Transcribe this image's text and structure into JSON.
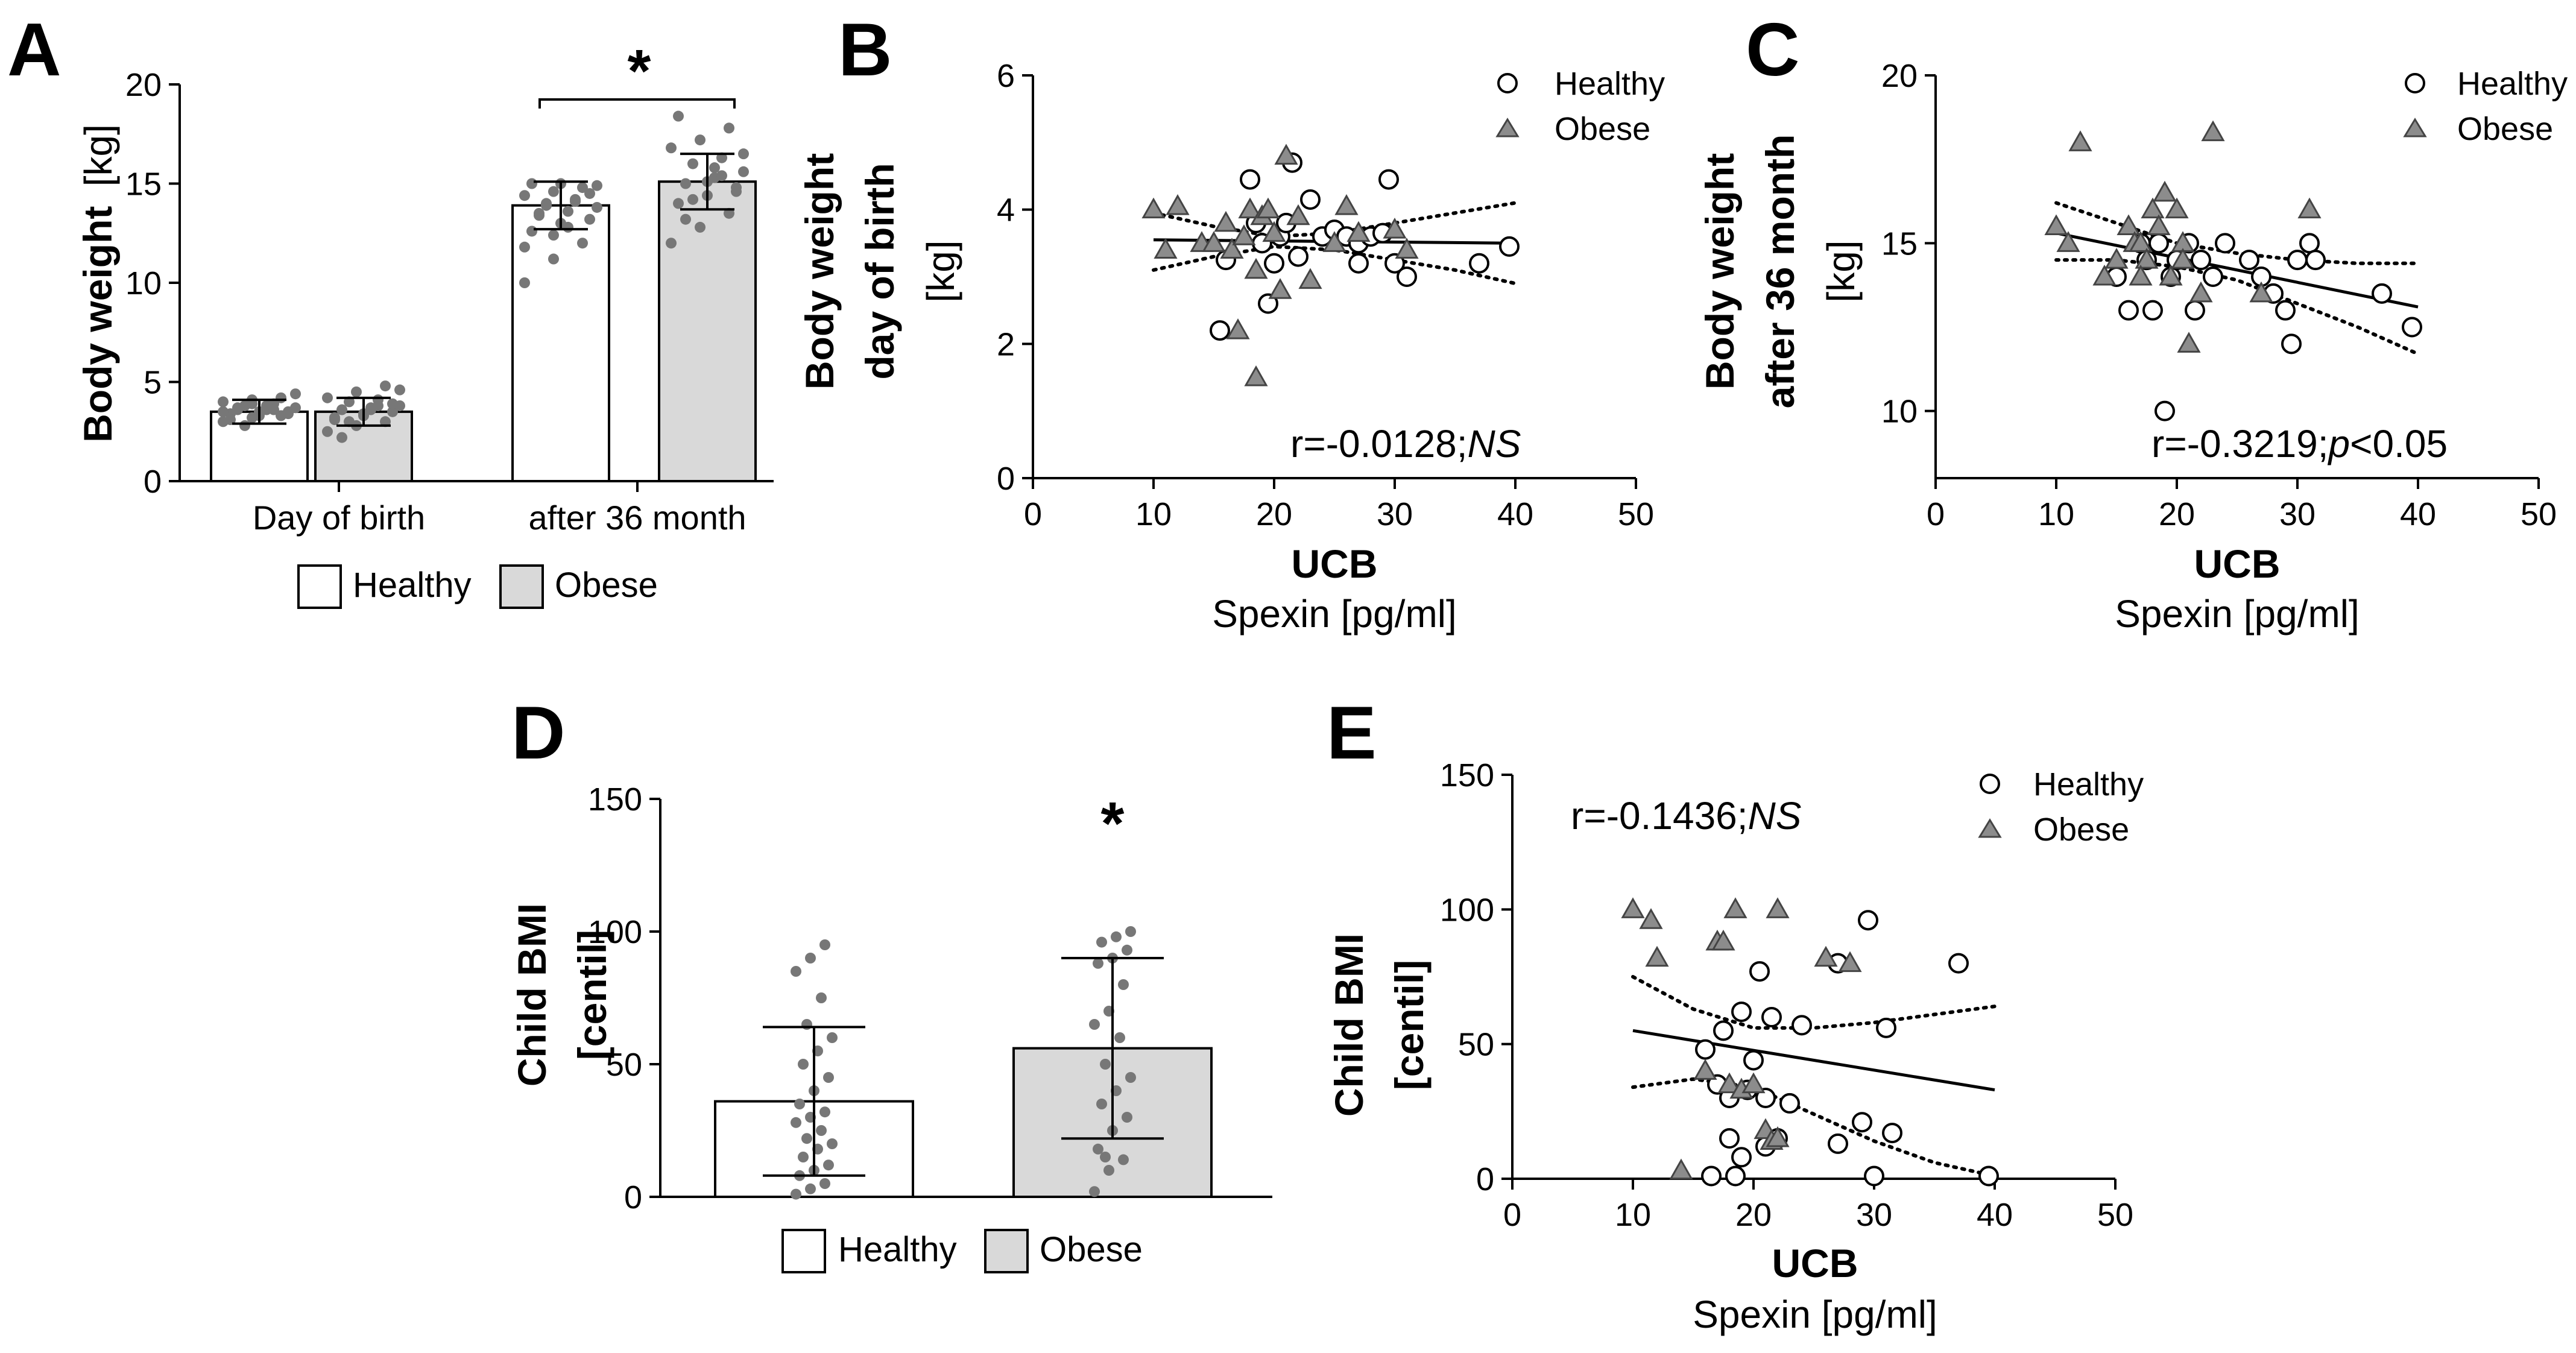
{
  "chart_data": [
    {
      "panel": "A",
      "type": "bar",
      "ylabel": "Body weight",
      "yunit": "[kg]",
      "ylim": [
        0,
        20
      ],
      "yticks": [
        "0",
        "5",
        "10",
        "15",
        "20"
      ],
      "categories": [
        "Day of birth",
        "after 36 month"
      ],
      "legend": [
        "Healthy",
        "Obese"
      ],
      "series": [
        {
          "name": "Healthy",
          "color": "#ffffff",
          "means": [
            3.5,
            13.9
          ],
          "sd": [
            0.6,
            1.2
          ],
          "points": [
            [
              3.0,
              3.2,
              3.3,
              3.4,
              3.5,
              3.5,
              3.6,
              3.6,
              3.7,
              3.8,
              3.9,
              4.0,
              4.1,
              4.2,
              3.1,
              3.3,
              3.4,
              3.7,
              3.8,
              4.4,
              2.8,
              3.6,
              3.5,
              3.9
            ],
            [
              10.0,
              11.2,
              12.0,
              12.6,
              13.0,
              13.2,
              13.4,
              13.6,
              13.8,
              14.0,
              14.2,
              14.4,
              14.6,
              14.8,
              15.0,
              15.0,
              14.5,
              13.5,
              12.8,
              14.9,
              13.9,
              14.1,
              11.8,
              12.4
            ]
          ]
        },
        {
          "name": "Obese",
          "color": "#d9d9d9",
          "means": [
            3.5,
            15.1
          ],
          "sd": [
            0.7,
            1.4
          ],
          "points": [
            [
              2.5,
              2.8,
              3.0,
              3.2,
              3.3,
              3.5,
              3.6,
              3.7,
              3.8,
              4.0,
              4.1,
              4.2,
              4.5,
              4.8,
              3.1,
              3.4,
              3.9,
              2.2,
              3.6,
              4.6,
              3.0,
              3.8
            ],
            [
              12.0,
              12.8,
              13.5,
              14.0,
              14.4,
              14.8,
              15.0,
              15.3,
              15.6,
              16.0,
              16.3,
              16.8,
              17.2,
              17.8,
              18.4,
              15.1,
              14.6,
              13.2,
              15.8,
              16.5,
              14.2,
              15.4
            ]
          ]
        }
      ],
      "annotations": [
        "*"
      ]
    },
    {
      "panel": "B",
      "type": "scatter",
      "ylabel": [
        "Body weight",
        "day of birth"
      ],
      "yunit": "[kg]",
      "xlabel": "UCB",
      "xsublabel": "Spexin [pg/ml]",
      "xlim": [
        0,
        50
      ],
      "ylim": [
        0,
        6
      ],
      "xticks": [
        "0",
        "10",
        "20",
        "30",
        "40",
        "50"
      ],
      "yticks": [
        "0",
        "2",
        "4",
        "6"
      ],
      "series": [
        {
          "name": "Healthy",
          "marker": "circle",
          "points": [
            [
              15.5,
              2.2
            ],
            [
              16,
              3.25
            ],
            [
              18,
              4.45
            ],
            [
              18.5,
              3.8
            ],
            [
              19,
              3.5
            ],
            [
              19.5,
              2.6
            ],
            [
              20.5,
              3.6
            ],
            [
              21,
              3.8
            ],
            [
              21.5,
              4.7
            ],
            [
              22,
              3.3
            ],
            [
              23,
              4.15
            ],
            [
              24,
              3.6
            ],
            [
              25,
              3.7
            ],
            [
              26,
              3.6
            ],
            [
              27,
              3.5
            ],
            [
              27,
              3.2
            ],
            [
              28,
              3.6
            ],
            [
              29,
              3.65
            ],
            [
              29.5,
              4.45
            ],
            [
              30,
              3.2
            ],
            [
              31,
              3.0
            ],
            [
              37,
              3.2
            ],
            [
              39.5,
              3.45
            ],
            [
              20,
              3.2
            ]
          ]
        },
        {
          "name": "Obese",
          "marker": "triangle",
          "points": [
            [
              10,
              4.0
            ],
            [
              11,
              3.4
            ],
            [
              12,
              4.05
            ],
            [
              14,
              3.5
            ],
            [
              15,
              3.5
            ],
            [
              16,
              3.8
            ],
            [
              16.5,
              3.4
            ],
            [
              17,
              2.2
            ],
            [
              17.5,
              3.6
            ],
            [
              18,
              4.0
            ],
            [
              18.5,
              3.1
            ],
            [
              18.5,
              1.5
            ],
            [
              19,
              3.9
            ],
            [
              19.5,
              4.0
            ],
            [
              20,
              3.65
            ],
            [
              20.5,
              2.8
            ],
            [
              21,
              4.8
            ],
            [
              22,
              3.9
            ],
            [
              23,
              2.95
            ],
            [
              25,
              3.5
            ],
            [
              26,
              4.05
            ],
            [
              27,
              3.65
            ],
            [
              30,
              3.7
            ],
            [
              31,
              3.4
            ]
          ]
        }
      ],
      "fit": {
        "x": [
          10,
          40
        ],
        "y": [
          3.55,
          3.5
        ]
      },
      "ci_upper": [
        [
          10,
          3.95
        ],
        [
          15,
          3.75
        ],
        [
          20,
          3.6
        ],
        [
          25,
          3.65
        ],
        [
          30,
          3.8
        ],
        [
          35,
          3.95
        ],
        [
          40,
          4.1
        ]
      ],
      "ci_lower": [
        [
          10,
          3.1
        ],
        [
          15,
          3.3
        ],
        [
          20,
          3.45
        ],
        [
          25,
          3.4
        ],
        [
          30,
          3.25
        ],
        [
          35,
          3.1
        ],
        [
          40,
          2.9
        ]
      ],
      "annotation": "r=-0.0128;NS"
    },
    {
      "panel": "C",
      "type": "scatter",
      "ylabel": [
        "Body weight",
        "after 36 month"
      ],
      "yunit": "[kg]",
      "xlabel": "UCB",
      "xsublabel": "Spexin [pg/ml]",
      "xlim": [
        0,
        50
      ],
      "ylim": [
        8,
        20
      ],
      "xticks": [
        "0",
        "10",
        "20",
        "30",
        "40",
        "50"
      ],
      "yticks": [
        "10",
        "15",
        "20"
      ],
      "series": [
        {
          "name": "Healthy",
          "marker": "circle",
          "points": [
            [
              15,
              14.0
            ],
            [
              16,
              13.0
            ],
            [
              17,
              15.0
            ],
            [
              18,
              13.0
            ],
            [
              18.5,
              15.0
            ],
            [
              19,
              10.0
            ],
            [
              19.5,
              14.0
            ],
            [
              20,
              14.5
            ],
            [
              21,
              15.0
            ],
            [
              21.5,
              13.0
            ],
            [
              22,
              14.5
            ],
            [
              23,
              14.0
            ],
            [
              24,
              15.0
            ],
            [
              26,
              14.5
            ],
            [
              27,
              14.0
            ],
            [
              28,
              13.5
            ],
            [
              29,
              13.0
            ],
            [
              29.5,
              12.0
            ],
            [
              30,
              14.5
            ],
            [
              31,
              15.0
            ],
            [
              31.5,
              14.5
            ],
            [
              37,
              13.5
            ],
            [
              39.5,
              12.5
            ],
            [
              17.5,
              14.5
            ]
          ]
        },
        {
          "name": "Obese",
          "marker": "triangle",
          "points": [
            [
              10,
              15.5
            ],
            [
              11,
              15.0
            ],
            [
              12,
              18.0
            ],
            [
              14,
              14.0
            ],
            [
              15,
              14.5
            ],
            [
              16,
              15.5
            ],
            [
              16.5,
              15.0
            ],
            [
              17,
              15.0
            ],
            [
              17.5,
              14.5
            ],
            [
              18,
              16.0
            ],
            [
              18.5,
              15.5
            ],
            [
              19,
              16.5
            ],
            [
              19.5,
              14.0
            ],
            [
              20,
              16.0
            ],
            [
              20.5,
              15.0
            ],
            [
              21,
              12.0
            ],
            [
              22,
              13.5
            ],
            [
              23,
              18.3
            ],
            [
              27,
              13.5
            ],
            [
              31,
              16.0
            ],
            [
              17,
              14.0
            ],
            [
              20.5,
              14.5
            ]
          ]
        }
      ],
      "fit": {
        "x": [
          10,
          40
        ],
        "y": [
          15.3,
          13.1
        ]
      },
      "ci_upper": [
        [
          10,
          16.2
        ],
        [
          15,
          15.6
        ],
        [
          20,
          15.0
        ],
        [
          25,
          14.7
        ],
        [
          30,
          14.5
        ],
        [
          35,
          14.4
        ],
        [
          40,
          14.4
        ]
      ],
      "ci_lower": [
        [
          10,
          14.5
        ],
        [
          15,
          14.5
        ],
        [
          20,
          14.3
        ],
        [
          25,
          13.9
        ],
        [
          30,
          13.2
        ],
        [
          35,
          12.5
        ],
        [
          40,
          11.7
        ]
      ],
      "annotation": "r=-0.3219;p<0.05"
    },
    {
      "panel": "D",
      "type": "bar",
      "ylabel": [
        "Child BMI",
        "[centil]"
      ],
      "ylim": [
        0,
        150
      ],
      "yticks": [
        "0",
        "50",
        "100",
        "150"
      ],
      "categories": [
        "Healthy",
        "Obese"
      ],
      "legend": [
        "Healthy",
        "Obese"
      ],
      "series": [
        {
          "name": "Healthy",
          "color": "#ffffff",
          "mean": 36,
          "sd": 28,
          "points": [
            1,
            3,
            5,
            8,
            10,
            12,
            15,
            18,
            20,
            22,
            25,
            28,
            30,
            32,
            35,
            40,
            45,
            50,
            55,
            60,
            65,
            75,
            85,
            90,
            95
          ]
        },
        {
          "name": "Obese",
          "color": "#d9d9d9",
          "mean": 56,
          "sd": 34,
          "points": [
            2,
            10,
            14,
            18,
            25,
            30,
            35,
            40,
            45,
            50,
            60,
            65,
            70,
            80,
            88,
            90,
            93,
            96,
            98,
            100,
            15
          ]
        }
      ],
      "annotations": [
        "*"
      ]
    },
    {
      "panel": "E",
      "type": "scatter",
      "ylabel": [
        "Child BMI",
        "[centil]"
      ],
      "xlabel": "UCB",
      "xsublabel": "Spexin [pg/ml]",
      "xlim": [
        0,
        50
      ],
      "ylim": [
        0,
        150
      ],
      "xticks": [
        "0",
        "10",
        "20",
        "30",
        "40",
        "50"
      ],
      "yticks": [
        "0",
        "50",
        "100",
        "150"
      ],
      "series": [
        {
          "name": "Healthy",
          "marker": "circle",
          "points": [
            [
              16,
              48
            ],
            [
              16.5,
              1
            ],
            [
              17,
              35
            ],
            [
              17.5,
              55
            ],
            [
              18,
              30
            ],
            [
              18,
              15
            ],
            [
              18.5,
              1
            ],
            [
              19,
              8
            ],
            [
              19.5,
              33
            ],
            [
              20,
              44
            ],
            [
              20.5,
              77
            ],
            [
              21,
              12
            ],
            [
              21,
              30
            ],
            [
              21.5,
              60
            ],
            [
              22,
              15
            ],
            [
              23,
              28
            ],
            [
              24,
              57
            ],
            [
              27,
              80
            ],
            [
              27,
              13
            ],
            [
              29,
              21
            ],
            [
              29.5,
              96
            ],
            [
              30,
              1
            ],
            [
              31,
              56
            ],
            [
              31.5,
              17
            ],
            [
              37,
              80
            ],
            [
              39.5,
              1
            ],
            [
              19,
              62
            ]
          ]
        },
        {
          "name": "Obese",
          "marker": "triangle",
          "points": [
            [
              10,
              100
            ],
            [
              11.5,
              96
            ],
            [
              12,
              82
            ],
            [
              14,
              3
            ],
            [
              16,
              40
            ],
            [
              17,
              88
            ],
            [
              17.5,
              88
            ],
            [
              18,
              35
            ],
            [
              18.5,
              100
            ],
            [
              19,
              33
            ],
            [
              20,
              35
            ],
            [
              21,
              18
            ],
            [
              21.5,
              14
            ],
            [
              22,
              100
            ],
            [
              26,
              82
            ],
            [
              28,
              80
            ],
            [
              22,
              15
            ]
          ]
        }
      ],
      "fit": {
        "x": [
          10,
          40
        ],
        "y": [
          55,
          33
        ]
      },
      "ci_upper": [
        [
          10,
          75
        ],
        [
          15,
          63
        ],
        [
          20,
          56
        ],
        [
          25,
          56
        ],
        [
          30,
          58
        ],
        [
          35,
          61
        ],
        [
          40,
          64
        ]
      ],
      "ci_lower": [
        [
          10,
          34
        ],
        [
          15,
          37
        ],
        [
          20,
          34
        ],
        [
          25,
          24
        ],
        [
          30,
          14
        ],
        [
          35,
          6
        ],
        [
          40,
          1
        ]
      ],
      "annotation": "r=-0.1436;NS"
    }
  ]
}
